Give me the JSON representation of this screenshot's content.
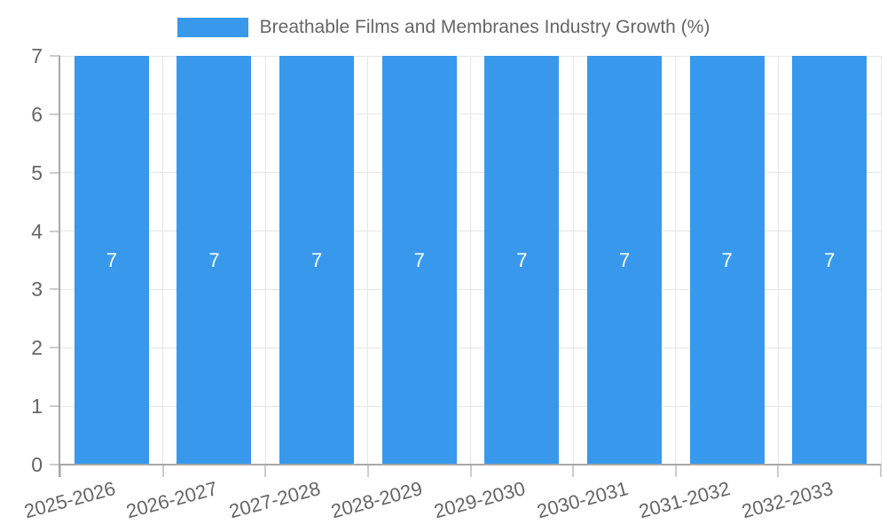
{
  "chart_data": {
    "type": "bar",
    "title": "Breathable Films and Membranes Industry Growth (%)",
    "legend": {
      "position": "top",
      "entries": [
        {
          "label": "Breathable Films and Membranes Industry Growth (%)",
          "swatch_color": "#3899ec"
        }
      ]
    },
    "categories": [
      "2025-2026",
      "2026-2027",
      "2027-2028",
      "2028-2029",
      "2029-2030",
      "2030-2031",
      "2031-2032",
      "2032-2033"
    ],
    "values": [
      7,
      7,
      7,
      7,
      7,
      7,
      7,
      7
    ],
    "bar_value_labels": [
      "7",
      "7",
      "7",
      "7",
      "7",
      "7",
      "7",
      "7"
    ],
    "xlabel": "",
    "ylabel": "",
    "ylim": [
      0,
      7
    ],
    "yticks": [
      0,
      1,
      2,
      3,
      4,
      5,
      6,
      7
    ],
    "grid": true,
    "x_tick_label_rotation_deg": -15,
    "colors": {
      "bar": "#3899ec",
      "bar_label_text": "#ffffff",
      "tick_text": "#666666",
      "grid": "#e6e6e6",
      "tick_mark": "#cccccc",
      "axis": "#a8a8a8",
      "background": "#ffffff"
    }
  }
}
